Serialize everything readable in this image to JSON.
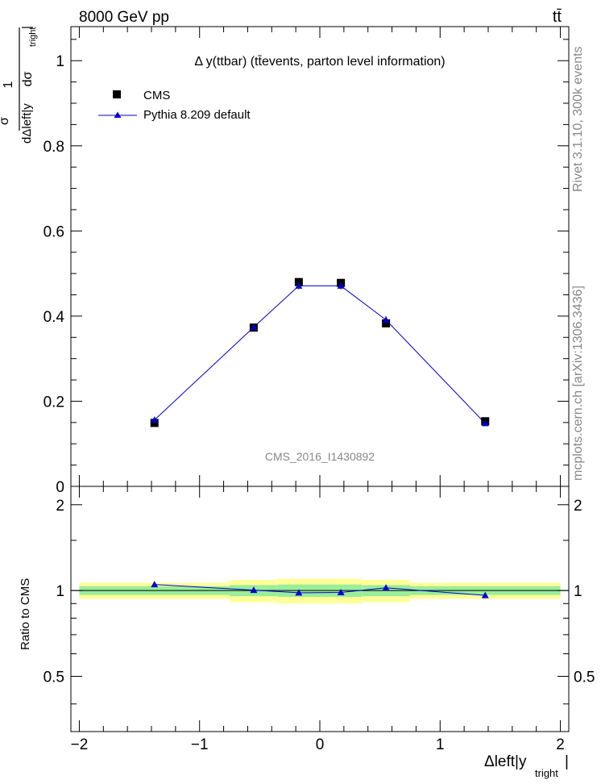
{
  "header": {
    "energy_label": "8000 GeV pp",
    "process_label": "tt̄"
  },
  "side_labels": {
    "rivet": "Rivet 3.1.10,  300k events",
    "mcplots": "mcplots.cern.ch [arXiv:1306.3436]"
  },
  "plot_title": "Δ y(ttbar) (tt̄events, parton level information)",
  "watermark": "CMS_2016_I1430892",
  "chart_data": [
    {
      "type": "scatter",
      "panel": "main",
      "ylabel": "1/σ dσ/dΔleft|y_tright|",
      "xlim": [
        -2.07,
        2.07
      ],
      "ylim": [
        0,
        1.08
      ],
      "yticks": [
        0,
        0.2,
        0.4,
        0.6,
        0.8,
        1
      ],
      "ytick_labels": [
        "0",
        "0.2",
        "0.4",
        "0.6",
        "0.8",
        "1"
      ],
      "legend_position": "top-left",
      "series": [
        {
          "name": "CMS",
          "marker": "square",
          "color": "#000000",
          "x": [
            -1.375,
            -0.55,
            -0.175,
            0.175,
            0.55,
            1.375
          ],
          "y": [
            0.149,
            0.373,
            0.48,
            0.478,
            0.383,
            0.153
          ],
          "err": [
            0.006,
            0.007,
            0.008,
            0.008,
            0.009,
            0.006
          ]
        },
        {
          "name": "Pythia 8.209 default",
          "marker": "triangle",
          "color": "#0000cc",
          "x": [
            -1.375,
            -0.55,
            -0.175,
            0.175,
            0.55,
            1.375
          ],
          "y": [
            0.156,
            0.374,
            0.471,
            0.471,
            0.391,
            0.148
          ],
          "err": [
            0.003,
            0.004,
            0.008,
            0.008,
            0.009,
            0.004
          ]
        }
      ]
    },
    {
      "type": "line",
      "panel": "ratio",
      "ylabel": "Ratio to CMS",
      "xlabel": "Δleft|y_tright|",
      "xlim": [
        -2.07,
        2.07
      ],
      "ylim": [
        0.32,
        2.32
      ],
      "xticks": [
        -2,
        -1,
        0,
        1,
        2
      ],
      "xtick_labels": [
        "−2",
        "−1",
        "0",
        "1",
        "2"
      ],
      "yticks": [
        0.5,
        1,
        2
      ],
      "ytick_labels": [
        "0.5",
        "1",
        "2"
      ],
      "bin_edges": [
        -2,
        -0.75,
        -0.35,
        0,
        0.35,
        0.75,
        2
      ],
      "band_inner": [
        0.035,
        0.045,
        0.05,
        0.05,
        0.045,
        0.035
      ],
      "band_outer": [
        0.065,
        0.09,
        0.1,
        0.1,
        0.09,
        0.065
      ],
      "series": [
        {
          "name": "Pythia 8.209 default",
          "color": "#0000cc",
          "x": [
            -1.375,
            -0.55,
            -0.175,
            0.175,
            0.55,
            1.375
          ],
          "y": [
            1.05,
            1.003,
            0.982,
            0.985,
            1.022,
            0.962
          ]
        }
      ]
    }
  ]
}
